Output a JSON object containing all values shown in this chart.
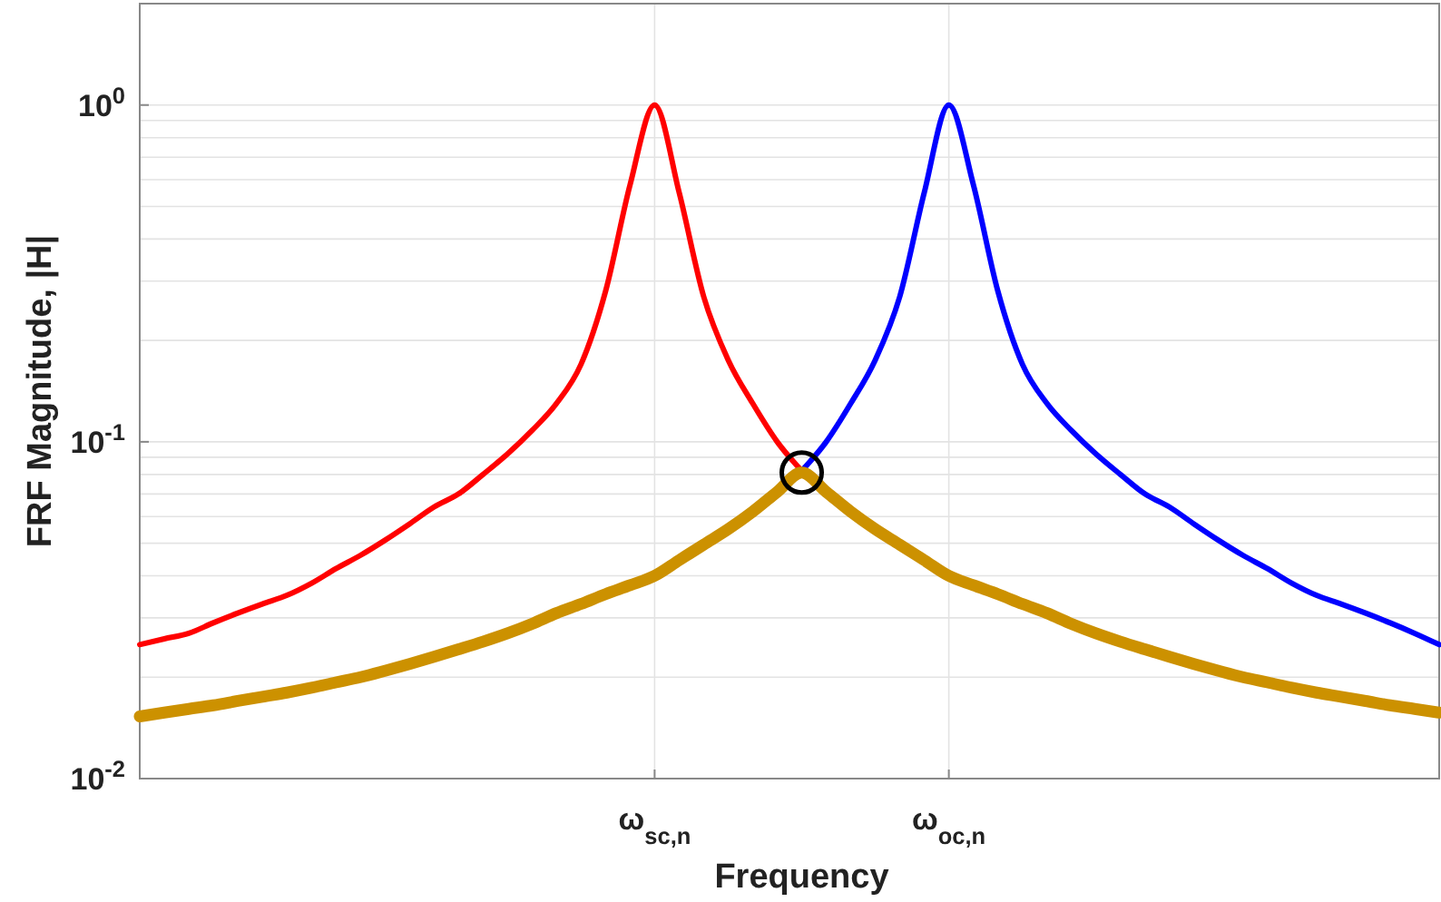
{
  "chart_data": {
    "type": "line",
    "xlabel": "Frequency",
    "ylabel": "FRF Magnitude, |H|",
    "categories": [
      null,
      null,
      null,
      null,
      null,
      null,
      null,
      null,
      null,
      null,
      null,
      null,
      null,
      null,
      null,
      null,
      null,
      null,
      null,
      null,
      null,
      "ω$_{sc,n}$",
      null,
      null,
      null,
      null,
      null,
      null,
      null,
      null,
      null,
      null,
      null,
      "ω$_{oc,n}$",
      null,
      null,
      null,
      null,
      null,
      null,
      null,
      null,
      null,
      null,
      null,
      null,
      null,
      null,
      null,
      null,
      null,
      null,
      null,
      null
    ],
    "ylim": [
      0.01,
      2
    ],
    "yticks": [
      {
        "value": 1,
        "label": "10$^{0}$"
      },
      {
        "value": 0.1,
        "label": "10$^{-1}$"
      },
      {
        "value": 0.01,
        "label": "10$^{-2}$"
      }
    ],
    "log": "y",
    "grid": true,
    "line_style": "solid",
    "series": [
      {
        "color": "#ff0000",
        "values": [
          0.025,
          0.026,
          0.027,
          0.029,
          0.031,
          0.033,
          0.035,
          0.038,
          0.042,
          0.046,
          0.051,
          0.057,
          0.064,
          0.07,
          0.08,
          0.092,
          0.108,
          0.13,
          0.17,
          0.28,
          0.58,
          1.0,
          0.55,
          0.27,
          0.175,
          0.13,
          0.1,
          0.082,
          null,
          null,
          null,
          null,
          null,
          null,
          null,
          null,
          null,
          null,
          null,
          null,
          null,
          null,
          null,
          null,
          null,
          null,
          null,
          null,
          null,
          null,
          null,
          null,
          null,
          null
        ]
      },
      {
        "color": "#0000ff",
        "values": [
          null,
          null,
          null,
          null,
          null,
          null,
          null,
          null,
          null,
          null,
          null,
          null,
          null,
          null,
          null,
          null,
          null,
          null,
          null,
          null,
          null,
          null,
          null,
          null,
          null,
          null,
          null,
          0.082,
          0.1,
          0.13,
          0.175,
          0.27,
          0.55,
          1.0,
          0.58,
          0.28,
          0.17,
          0.13,
          0.108,
          0.092,
          0.08,
          0.07,
          0.064,
          0.057,
          0.051,
          0.046,
          0.042,
          0.038,
          0.035,
          0.033,
          0.031,
          0.029,
          0.027,
          0.025
        ]
      },
      {
        "color": "#cc9100",
        "values": [
          0.0153,
          0.0157,
          0.0161,
          0.0165,
          0.017,
          0.0175,
          0.018,
          0.0186,
          0.0193,
          0.02,
          0.0209,
          0.0219,
          0.023,
          0.0242,
          0.0255,
          0.027,
          0.0288,
          0.031,
          0.033,
          0.0353,
          0.0375,
          0.04,
          0.0445,
          0.0495,
          0.055,
          0.062,
          0.071,
          0.081,
          0.071,
          0.062,
          0.055,
          0.0495,
          0.0445,
          0.04,
          0.0375,
          0.0353,
          0.033,
          0.031,
          0.0288,
          0.027,
          0.0255,
          0.0242,
          0.023,
          0.0219,
          0.0209,
          0.02,
          0.0193,
          0.0186,
          0.018,
          0.0175,
          0.017,
          0.0165,
          0.0161,
          0.0157
        ]
      },
      {
        "type": "scatter",
        "marker": "circle",
        "color": "#000000",
        "values": [
          null,
          null,
          null,
          null,
          null,
          null,
          null,
          null,
          null,
          null,
          null,
          null,
          null,
          null,
          null,
          null,
          null,
          null,
          null,
          null,
          null,
          null,
          null,
          null,
          null,
          null,
          null,
          0.081,
          null,
          null,
          null,
          null,
          null,
          null,
          null,
          null,
          null,
          null,
          null,
          null,
          null,
          null,
          null,
          null,
          null,
          null,
          null,
          null,
          null,
          null,
          null,
          null,
          null,
          null
        ]
      }
    ]
  }
}
